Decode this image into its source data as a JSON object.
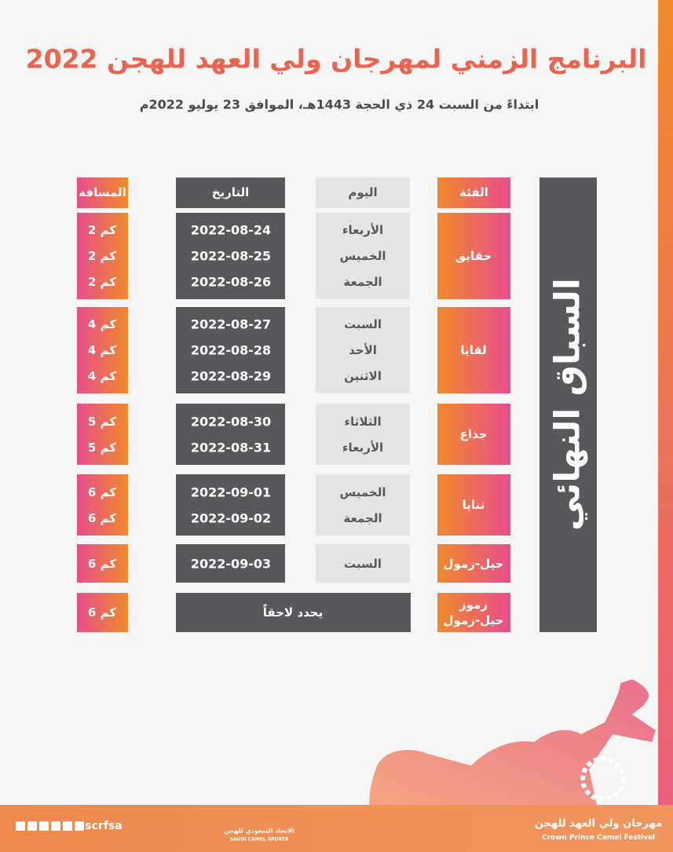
{
  "header": {
    "title": "البرنامج الزمني لمهرجان ولي العهد للهجن 2022",
    "subtitle": "ابتداءً من السبت 24 ذي الحجة 1443هـ، الموافق 23 يوليو 2022م"
  },
  "side_label": "السباق النهائي",
  "table": {
    "columns": [
      "الفئة",
      "اليوم",
      "التاريخ",
      "المسافة"
    ],
    "rows": [
      {
        "category_lines": [
          "حقايق"
        ],
        "entries": [
          {
            "day": "الأربعاء",
            "date": "2022-08-24",
            "distance": "2 كم"
          },
          {
            "day": "الخميس",
            "date": "2022-08-25",
            "distance": "2 كم"
          },
          {
            "day": "الجمعة",
            "date": "2022-08-26",
            "distance": "2 كم"
          }
        ]
      },
      {
        "category_lines": [
          "لقايا"
        ],
        "entries": [
          {
            "day": "السبت",
            "date": "2022-08-27",
            "distance": "4 كم"
          },
          {
            "day": "الأحد",
            "date": "2022-08-28",
            "distance": "4 كم"
          },
          {
            "day": "الاثنين",
            "date": "2022-08-29",
            "distance": "4 كم"
          }
        ]
      },
      {
        "category_lines": [
          "جذاع"
        ],
        "entries": [
          {
            "day": "الثلاثاء",
            "date": "2022-08-30",
            "distance": "5 كم"
          },
          {
            "day": "الأربعاء",
            "date": "2022-08-31",
            "distance": "5 كم"
          }
        ]
      },
      {
        "category_lines": [
          "ثنايا"
        ],
        "entries": [
          {
            "day": "الخميس",
            "date": "2022-09-01",
            "distance": "6 كم"
          },
          {
            "day": "الجمعة",
            "date": "2022-09-02",
            "distance": "6 كم"
          }
        ]
      },
      {
        "category_lines": [
          "حيل-زمول"
        ],
        "entries": [
          {
            "day": "السبت",
            "date": "2022-09-03",
            "distance": "6 كم"
          }
        ]
      },
      {
        "category_lines": [
          "رموز",
          "حيل-زمول"
        ],
        "note": "يحدد لاحقاً",
        "entries": [
          {
            "distance": "6 كم"
          }
        ]
      }
    ]
  },
  "footer": {
    "handle": "scrfsa",
    "festival_ar": "مهرجان ولي العهد للهجن",
    "festival_en": "Crown Prince Camel Festival",
    "federation_ar": "الاتحاد السعودي للهجن",
    "federation_en": "SAUDI CAMEL SPORTS"
  }
}
